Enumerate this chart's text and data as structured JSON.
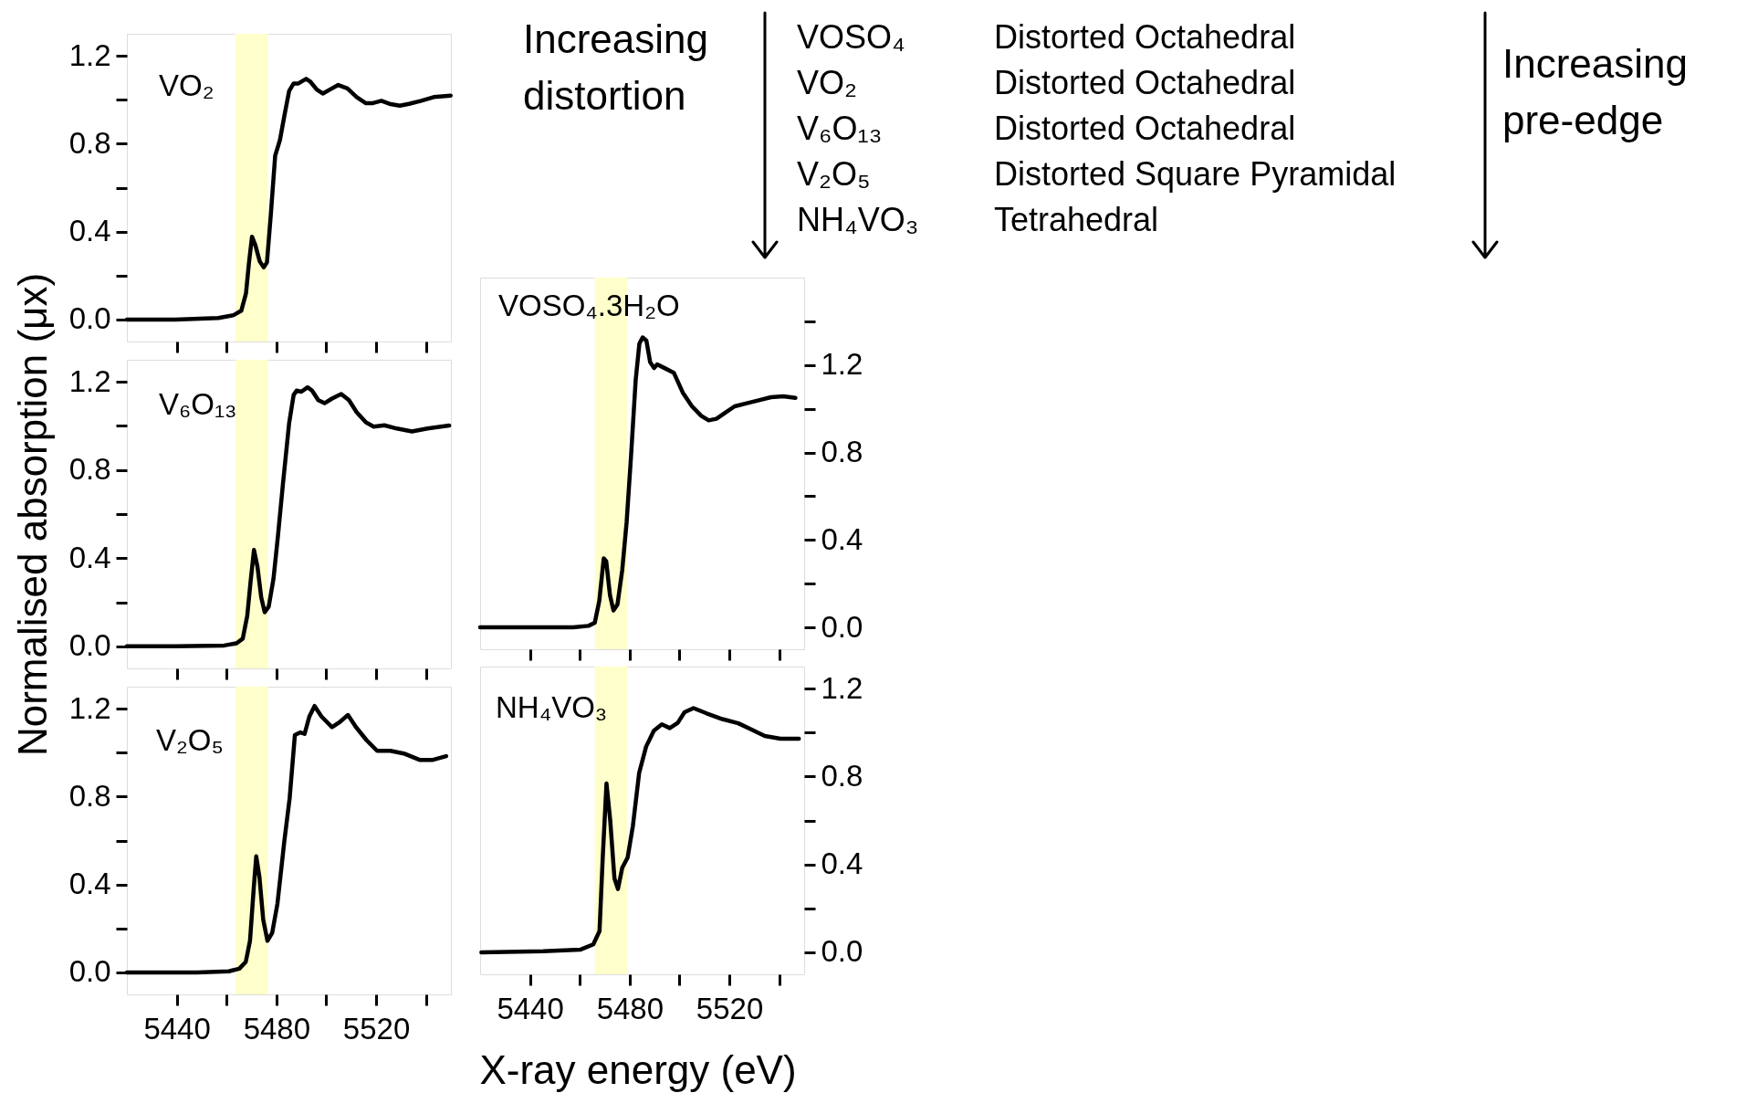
{
  "chart_data": [
    {
      "type": "line",
      "title": "VO₂",
      "tick_labels": "y",
      "x": [
        5420,
        5439.4,
        5456.7,
        5462.8,
        5465.9,
        5467.8,
        5469,
        5470.2,
        5471.5,
        5473.3,
        5474.9,
        5476.2,
        5477.7,
        5479.5,
        5481.4,
        5483.2,
        5485.1,
        5486.9,
        5488.8,
        5491.9,
        5493.7,
        5496.2,
        5498.6,
        5501.1,
        5504.8,
        5508.5,
        5512.2,
        5515.9,
        5518.4,
        5522.1,
        5525.8,
        5529.5,
        5533.2,
        5538.1,
        5543.1,
        5549.9
      ],
      "series": [
        {
          "color": "#000000",
          "values": [
            0,
            0,
            0.007,
            0.02,
            0.04,
            0.12,
            0.26,
            0.377,
            0.34,
            0.265,
            0.237,
            0.26,
            0.47,
            0.746,
            0.816,
            0.928,
            1.04,
            1.074,
            1.074,
            1.095,
            1.081,
            1.046,
            1.028,
            1.044,
            1.067,
            1.051,
            1.012,
            0.984,
            0.984,
            0.995,
            0.98,
            0.973,
            0.981,
            0.995,
            1.012,
            1.019
          ]
        }
      ],
      "xlim": [
        5420,
        5550
      ],
      "xticks": [
        5440,
        {
          "value": 5460,
          "label": null
        },
        5480,
        {
          "value": 5500,
          "label": null
        },
        5520,
        {
          "value": 5540,
          "label": null
        }
      ],
      "ylim": [
        -0.1,
        1.3
      ],
      "yticks": [
        {
          "value": 0,
          "label": "0.0"
        },
        {
          "value": 0.2,
          "label": null
        },
        0.4,
        {
          "value": 0.6,
          "label": null
        },
        0.8,
        {
          "value": 1.0,
          "label": null
        },
        1.2
      ],
      "bands": [
        {
          "axis": "x",
          "from": 5463.5,
          "to": 5476.5,
          "color": "#ffffcc"
        }
      ]
    },
    {
      "type": "other",
      "annotations": [
        "Increasing distortion",
        "VOSO₄",
        "Distorted Octahedral",
        "VO₂",
        "Distorted Octahedral",
        "V₆O₁₃",
        "Distorted Octahedral",
        "V₂O₅",
        "Distorted Square Pyramidal",
        "NH₄VO₃",
        "Tetrahedral",
        "Increasing pre-edge"
      ]
    },
    {
      "type": "line",
      "title": "V₆O₁₃",
      "tick_labels": "y",
      "ylabel": "Normalised absorption (μx)",
      "x": [
        5420,
        5439.4,
        5459.1,
        5464,
        5466.5,
        5468.3,
        5469.6,
        5471,
        5472.4,
        5473.9,
        5475.3,
        5476.9,
        5478.8,
        5480.6,
        5482.6,
        5485.1,
        5486.9,
        5488.1,
        5490,
        5492.5,
        5494.3,
        5496.8,
        5499.3,
        5502.3,
        5506,
        5509.1,
        5512.2,
        5515.9,
        5519,
        5523.3,
        5528.3,
        5534.4,
        5540.6,
        5549.3
      ],
      "series": [
        {
          "color": "#000000",
          "values": [
            0,
            0,
            0.004,
            0.014,
            0.035,
            0.139,
            0.29,
            0.437,
            0.361,
            0.222,
            0.155,
            0.18,
            0.305,
            0.5,
            0.735,
            1.013,
            1.14,
            1.16,
            1.155,
            1.175,
            1.16,
            1.117,
            1.103,
            1.124,
            1.145,
            1.117,
            1.062,
            1.016,
            0.997,
            1.003,
            0.988,
            0.975,
            0.988,
            1.002
          ]
        }
      ],
      "xlim": [
        5420,
        5550
      ],
      "xticks": [
        5440,
        {
          "value": 5460,
          "label": null
        },
        5480,
        {
          "value": 5500,
          "label": null
        },
        5520,
        {
          "value": 5540,
          "label": null
        }
      ],
      "ylim": [
        -0.1,
        1.3
      ],
      "yticks": [
        {
          "value": 0,
          "label": "0.0"
        },
        {
          "value": 0.2,
          "label": null
        },
        0.4,
        {
          "value": 0.6,
          "label": null
        },
        0.8,
        {
          "value": 1.0,
          "label": null
        },
        1.2
      ],
      "bands": [
        {
          "axis": "x",
          "from": 5463.5,
          "to": 5476.5,
          "color": "#ffffcc"
        }
      ]
    },
    {
      "type": "line",
      "title": "VOSO₄.3H₂O",
      "tick_labels": "y",
      "x": [
        5420,
        5439.1,
        5457.4,
        5463.5,
        5466,
        5467.8,
        5469.6,
        5470.6,
        5472.1,
        5473.5,
        5475.1,
        5477,
        5478.8,
        5480.6,
        5482.4,
        5483.9,
        5485.2,
        5486.7,
        5488.2,
        5489.8,
        5491,
        5494,
        5497.7,
        5501.3,
        5505,
        5508.7,
        5511.7,
        5514.8,
        5518.4,
        5522.1,
        5527,
        5531.8,
        5536.7,
        5541.6,
        5546.5
      ],
      "series": [
        {
          "color": "#000000",
          "values": [
            0,
            0,
            0,
            0.007,
            0.021,
            0.12,
            0.316,
            0.302,
            0.147,
            0.077,
            0.105,
            0.26,
            0.484,
            0.793,
            1.13,
            1.298,
            1.326,
            1.312,
            1.214,
            1.186,
            1.203,
            1.186,
            1.165,
            1.074,
            1.011,
            0.968,
            0.947,
            0.954,
            0.982,
            1.011,
            1.025,
            1.039,
            1.053,
            1.057,
            1.05
          ]
        }
      ],
      "xlim": [
        5420,
        5550
      ],
      "xticks": [
        5440,
        {
          "value": 5460,
          "label": null
        },
        5480,
        {
          "value": 5500,
          "label": null
        },
        5520,
        {
          "value": 5540,
          "label": null
        }
      ],
      "ylim": [
        -0.1,
        1.6
      ],
      "yticks": [
        {
          "value": 0,
          "label": "0.0"
        },
        {
          "value": 0.2,
          "label": null
        },
        0.4,
        {
          "value": 0.6,
          "label": null
        },
        0.8,
        {
          "value": 1.0,
          "label": null
        },
        1.2,
        {
          "value": 1.4,
          "label": null
        }
      ],
      "bands": [
        {
          "axis": "x",
          "from": 5466,
          "to": 5479,
          "color": "#ffffcc"
        }
      ]
    },
    {
      "type": "line",
      "title": "V₂O₅",
      "xlabel": "X-ray energy (eV)",
      "x": [
        5420,
        5448.1,
        5460.9,
        5465.1,
        5467.7,
        5469.4,
        5470.9,
        5471.9,
        5473.2,
        5474.7,
        5476.4,
        5478.3,
        5480.4,
        5483.2,
        5485.3,
        5487.4,
        5489.6,
        5491.3,
        5493.2,
        5495.3,
        5498.1,
        5502.3,
        5505.5,
        5508.7,
        5511.9,
        5516.2,
        5520.4,
        5525.7,
        5531.1,
        5537.4,
        5542.8,
        5548.1
      ],
      "series": [
        {
          "color": "#000000",
          "values": [
            0,
            0,
            0.005,
            0.017,
            0.048,
            0.144,
            0.384,
            0.528,
            0.432,
            0.24,
            0.144,
            0.18,
            0.312,
            0.6,
            0.792,
            1.08,
            1.092,
            1.085,
            1.164,
            1.212,
            1.164,
            1.116,
            1.14,
            1.171,
            1.116,
            1.056,
            1.008,
            1.008,
            0.996,
            0.967,
            0.967,
            0.984
          ]
        }
      ],
      "xlim": [
        5420,
        5550
      ],
      "xticks": [
        5440,
        {
          "value": 5460,
          "label": null
        },
        5480,
        {
          "value": 5500,
          "label": null
        },
        5520,
        {
          "value": 5540,
          "label": null
        }
      ],
      "ylim": [
        -0.1,
        1.3
      ],
      "yticks": [
        {
          "value": 0,
          "label": "0.0"
        },
        {
          "value": 0.2,
          "label": null
        },
        0.4,
        {
          "value": 0.6,
          "label": null
        },
        0.8,
        {
          "value": 1.0,
          "label": null
        },
        1.2
      ],
      "bands": [
        {
          "axis": "x",
          "from": 5463.5,
          "to": 5476.5,
          "color": "#ffffcc"
        }
      ]
    },
    {
      "type": "line",
      "title": "NH₄VO₃",
      "x": [
        5420.5,
        5445.3,
        5460.1,
        5465.4,
        5467.9,
        5469.2,
        5470.7,
        5472.2,
        5473.9,
        5475.3,
        5477,
        5479.2,
        5481.3,
        5483.8,
        5486.6,
        5489.7,
        5492.9,
        5496.1,
        5499.3,
        5502,
        5505.6,
        5510.9,
        5517.2,
        5523.6,
        5528.9,
        5534.2,
        5540.5,
        5547.9
      ],
      "series": [
        {
          "color": "#000000",
          "values": [
            0,
            0.005,
            0.012,
            0.036,
            0.096,
            0.432,
            0.768,
            0.6,
            0.336,
            0.288,
            0.384,
            0.432,
            0.576,
            0.816,
            0.936,
            1.008,
            1.037,
            1.02,
            1.044,
            1.092,
            1.111,
            1.087,
            1.061,
            1.042,
            1.013,
            0.984,
            0.972,
            0.972
          ]
        }
      ],
      "xlim": [
        5420,
        5550
      ],
      "xticks": [
        5440,
        {
          "value": 5460,
          "label": null
        },
        5480,
        {
          "value": 5500,
          "label": null
        },
        5520,
        {
          "value": 5540,
          "label": null
        }
      ],
      "ylim": [
        -0.1,
        1.3
      ],
      "yticks": [
        {
          "value": 0,
          "label": "0.0"
        },
        {
          "value": 0.2,
          "label": null
        },
        0.4,
        {
          "value": 0.6,
          "label": null
        },
        0.8,
        {
          "value": 1.0,
          "label": null
        },
        1.2
      ],
      "bands": [
        {
          "axis": "x",
          "from": 5466,
          "to": 5479,
          "color": "#ffffcc"
        }
      ]
    }
  ]
}
